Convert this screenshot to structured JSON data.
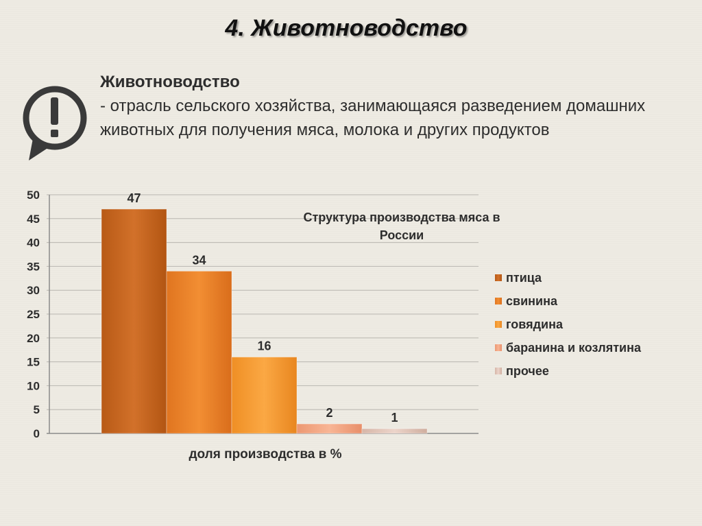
{
  "slide": {
    "title": "4. Животноводство",
    "icon": "exclamation-bubble-icon",
    "definition_term": "Животноводство",
    "definition_text": "- отрасль сельского хозяйства, занимающаяся разведением домашних животных для получения мяса, молока и других продуктов"
  },
  "colors": {
    "background": "#eeebe3",
    "text": "#2d2d2d",
    "icon": "#3a3a3a"
  },
  "chart_data": {
    "type": "bar",
    "title": "Структура производства мяса в России",
    "xlabel": "доля производства в %",
    "ylabel": "",
    "ylim": [
      0,
      50
    ],
    "yticks": [
      0,
      5,
      10,
      15,
      20,
      25,
      30,
      35,
      40,
      45,
      50
    ],
    "grid": true,
    "legend_position": "right",
    "series": [
      {
        "name": "птица",
        "value": 47,
        "color": "#c96a22"
      },
      {
        "name": "свинина",
        "value": 34,
        "color": "#e88327"
      },
      {
        "name": "говядина",
        "value": 16,
        "color": "#f49a34"
      },
      {
        "name": "баранина и козлятина",
        "value": 2,
        "color": "#f1a27f"
      },
      {
        "name": "прочее",
        "value": 1,
        "color": "#dcc0b4"
      }
    ]
  }
}
